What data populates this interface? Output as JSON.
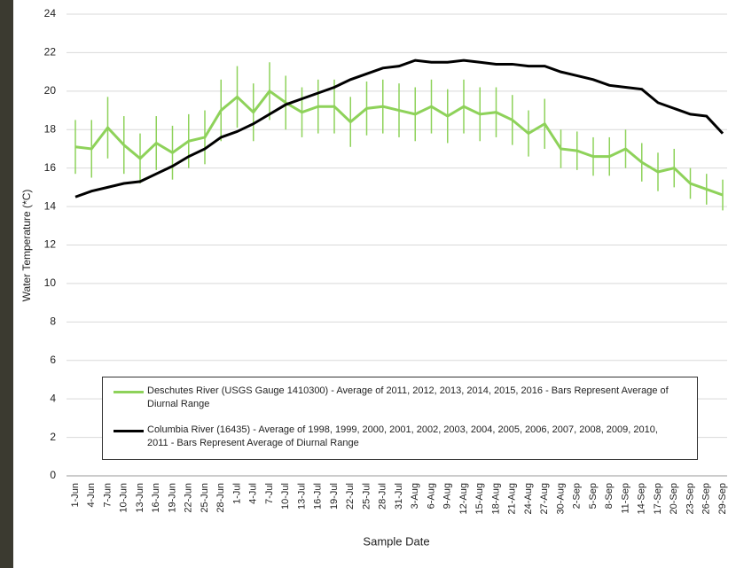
{
  "chart_data": {
    "type": "line",
    "xlabel": "Sample Date",
    "ylabel": "Water Temperature (*C)",
    "categories": [
      "1-Jun",
      "4-Jun",
      "7-Jun",
      "10-Jun",
      "13-Jun",
      "16-Jun",
      "19-Jun",
      "22-Jun",
      "25-Jun",
      "28-Jun",
      "1-Jul",
      "4-Jul",
      "7-Jul",
      "10-Jul",
      "13-Jul",
      "16-Jul",
      "19-Jul",
      "22-Jul",
      "25-Jul",
      "28-Jul",
      "31-Jul",
      "3-Aug",
      "6-Aug",
      "9-Aug",
      "12-Aug",
      "15-Aug",
      "18-Aug",
      "21-Aug",
      "24-Aug",
      "27-Aug",
      "30-Aug",
      "2-Sep",
      "5-Sep",
      "8-Sep",
      "11-Sep",
      "14-Sep",
      "17-Sep",
      "20-Sep",
      "23-Sep",
      "26-Sep",
      "29-Sep"
    ],
    "series": [
      {
        "name": "Deschutes River (USGS Gauge 1410300) - Average of 2011, 2012, 2013, 2014, 2015, 2016 - Bars Represent Average of Diurnal Range",
        "color": "#8ed25a",
        "values": [
          17.1,
          17.0,
          18.1,
          17.2,
          16.5,
          17.3,
          16.8,
          17.4,
          17.6,
          19.0,
          19.7,
          18.9,
          20.0,
          19.4,
          18.9,
          19.2,
          19.2,
          18.4,
          19.1,
          19.2,
          19.0,
          18.8,
          19.2,
          18.7,
          19.2,
          18.8,
          18.9,
          18.5,
          17.8,
          18.3,
          17.0,
          16.9,
          16.6,
          16.6,
          17.0,
          16.3,
          15.8,
          16.0,
          15.2,
          14.9,
          14.6
        ],
        "errors": [
          1.4,
          1.5,
          1.6,
          1.5,
          1.3,
          1.4,
          1.4,
          1.4,
          1.4,
          1.6,
          1.6,
          1.5,
          1.5,
          1.4,
          1.3,
          1.4,
          1.4,
          1.3,
          1.4,
          1.4,
          1.4,
          1.4,
          1.4,
          1.4,
          1.4,
          1.4,
          1.3,
          1.3,
          1.2,
          1.3,
          1.0,
          1.0,
          1.0,
          1.0,
          1.0,
          1.0,
          1.0,
          1.0,
          0.8,
          0.8,
          0.8
        ]
      },
      {
        "name": "Columbia River (16435) - Average of 1998, 1999, 2000, 2001, 2002, 2003, 2004, 2005, 2006, 2007, 2008, 2009, 2010, 2011 - Bars Represent Average of Diurnal Range",
        "color": "#000000",
        "values": [
          14.5,
          14.8,
          15.0,
          15.2,
          15.3,
          15.7,
          16.1,
          16.6,
          17.0,
          17.6,
          17.9,
          18.3,
          18.8,
          19.3,
          19.6,
          19.9,
          20.2,
          20.6,
          20.9,
          21.2,
          21.3,
          21.6,
          21.5,
          21.5,
          21.6,
          21.5,
          21.4,
          21.4,
          21.3,
          21.3,
          21.0,
          20.8,
          20.6,
          20.3,
          20.2,
          20.1,
          19.4,
          19.1,
          18.8,
          18.7,
          17.8
        ]
      }
    ],
    "ylim": [
      0,
      24
    ],
    "yticks": [
      0,
      2,
      4,
      6,
      8,
      10,
      12,
      14,
      16,
      18,
      20,
      22,
      24
    ],
    "grid": true
  }
}
